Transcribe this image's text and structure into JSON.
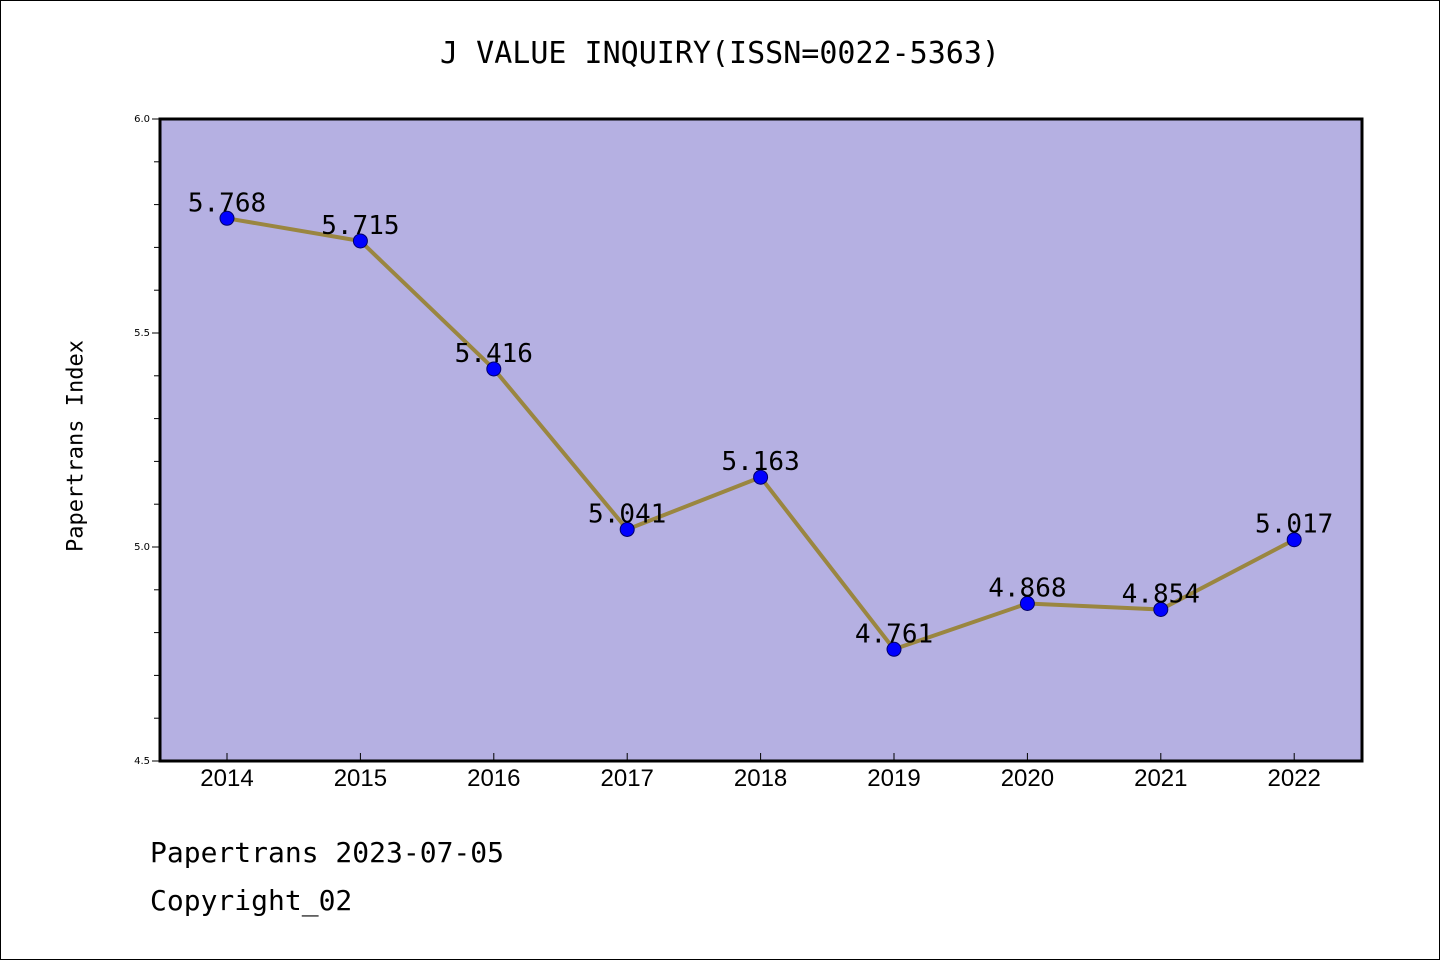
{
  "header": {
    "title": "J VALUE INQUIRY(ISSN=0022-5363)"
  },
  "footer": {
    "line1": "Papertrans 2023-07-05",
    "line2": "Copyright_02"
  },
  "chart_data": {
    "type": "line",
    "title": "J VALUE INQUIRY(ISSN=0022-5363)",
    "xlabel": "",
    "ylabel": "Papertrans Index",
    "categories": [
      "2014",
      "2015",
      "2016",
      "2017",
      "2018",
      "2019",
      "2020",
      "2021",
      "2022"
    ],
    "values": [
      5.768,
      5.715,
      5.416,
      5.041,
      5.163,
      4.761,
      4.868,
      4.854,
      5.017
    ],
    "data_labels": [
      "5.768",
      "5.715",
      "5.416",
      "5.041",
      "5.163",
      "4.761",
      "4.868",
      "4.854",
      "5.017"
    ],
    "ylim": [
      4.5,
      6.0
    ],
    "yticks": [
      "4.5",
      "5.0",
      "5.5",
      "6.0"
    ],
    "colors": {
      "plot_background": "#b5b0e2",
      "line": "#9a8640",
      "marker": "#0000ff"
    },
    "grid": false,
    "legend": "none"
  }
}
